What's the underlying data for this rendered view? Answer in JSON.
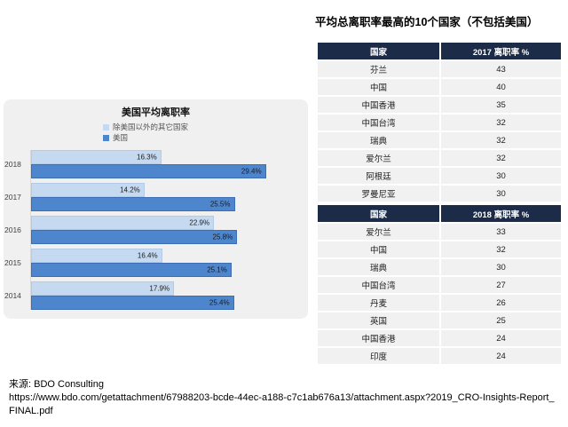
{
  "table_title": "平均总离职率最高的10个国家（不包括美国）",
  "source": {
    "label": "来源: BDO Consulting",
    "url": "https://www.bdo.com/getattachment/67988203-bcde-44ec-a188-c7c1ab676a13/attachment.aspx?2019_CRO-Insights-Report_FINAL.pdf"
  },
  "colors": {
    "table_header_bg": "#1c2b47",
    "table_row_bg": "#f1f1f2",
    "panel_bg": "#f0f0f1",
    "bar_light": "#c5d9f1",
    "bar_light_border": "#b3cbe8",
    "bar_dark": "#4e86ce",
    "bar_dark_border": "#3d6db5"
  },
  "chart_data": [
    {
      "type": "bar",
      "orientation": "horizontal",
      "title": "美国平均离职率",
      "categories": [
        "2018",
        "2017",
        "2016",
        "2015",
        "2014"
      ],
      "series": [
        {
          "name": "除美国以外的其它国家",
          "color": "#c5d9f1",
          "values": [
            16.3,
            14.2,
            22.9,
            16.4,
            17.9
          ]
        },
        {
          "name": "美国",
          "color": "#4e86ce",
          "values": [
            29.4,
            25.5,
            25.8,
            25.1,
            25.4
          ]
        }
      ],
      "value_suffix": "%",
      "xlim": [
        0,
        34
      ],
      "grid": false,
      "legend_position": "top",
      "data_labels": "inside-end"
    },
    {
      "type": "table",
      "columns": [
        "国家",
        "2017 离职率 %"
      ],
      "rows": [
        [
          "芬兰",
          43
        ],
        [
          "中国",
          40
        ],
        [
          "中国香港",
          35
        ],
        [
          "中国台湾",
          32
        ],
        [
          "瑞典",
          32
        ],
        [
          "爱尔兰",
          32
        ],
        [
          "阿根廷",
          30
        ],
        [
          "罗曼尼亚",
          30
        ]
      ]
    },
    {
      "type": "table",
      "columns": [
        "国家",
        "2018 离职率 %"
      ],
      "rows": [
        [
          "爱尔兰",
          33
        ],
        [
          "中国",
          32
        ],
        [
          "瑞典",
          30
        ],
        [
          "中国台湾",
          27
        ],
        [
          "丹麦",
          26
        ],
        [
          "英国",
          25
        ],
        [
          "中国香港",
          24
        ],
        [
          "印度",
          24
        ]
      ]
    }
  ]
}
